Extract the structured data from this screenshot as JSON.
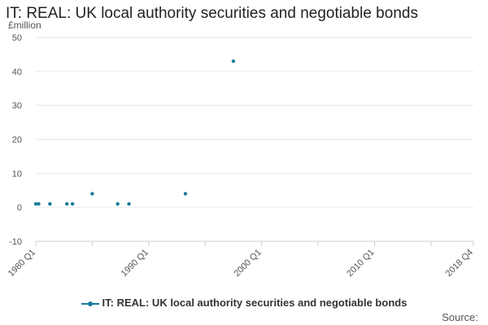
{
  "chart_data": {
    "type": "scatter",
    "title": "IT: REAL: UK local authority securities and negotiable bonds",
    "ylabel": "£million",
    "xlabel": "",
    "ylim": [
      -10,
      50
    ],
    "yticks": [
      -10,
      0,
      10,
      20,
      30,
      40,
      50
    ],
    "x_range": [
      "1980 Q1",
      "2018 Q4"
    ],
    "xticks": [
      "1980 Q1",
      "1990 Q1",
      "2000 Q1",
      "2010 Q1",
      "2018 Q4"
    ],
    "grid": true,
    "legend_position": "bottom",
    "series": [
      {
        "name": "IT: REAL: UK local authority securities and negotiable bonds",
        "color": "#1a7a9b",
        "points": [
          {
            "x": "1980 Q1",
            "y": 1
          },
          {
            "x": "1980 Q2",
            "y": 1
          },
          {
            "x": "1981 Q2",
            "y": 1
          },
          {
            "x": "1982 Q4",
            "y": 1
          },
          {
            "x": "1983 Q2",
            "y": 1
          },
          {
            "x": "1985 Q1",
            "y": 4
          },
          {
            "x": "1987 Q2",
            "y": 1
          },
          {
            "x": "1988 Q2",
            "y": 1
          },
          {
            "x": "1993 Q2",
            "y": 4
          },
          {
            "x": "1997 Q3",
            "y": 43
          }
        ]
      }
    ],
    "source": "Source:"
  }
}
